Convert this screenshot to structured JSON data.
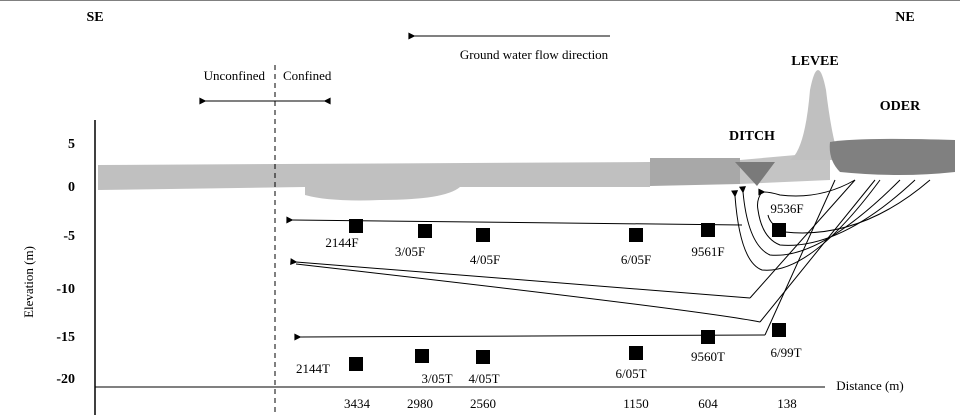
{
  "header": {
    "left": "SE",
    "right": "NE",
    "flow_label": "Ground water flow direction"
  },
  "zones": {
    "unconfined": "Unconfined",
    "confined": "Confined"
  },
  "features": {
    "levee": "LEVEE",
    "ditch": "DITCH",
    "oder": "ODER"
  },
  "y_axis": {
    "label": "Elevation (m)",
    "ticks": [
      "5",
      "0",
      "-5",
      "-10",
      "-15",
      "-20"
    ]
  },
  "x_axis": {
    "label": "Distance (m)",
    "ticks": [
      "3434",
      "2980",
      "2560",
      "1150",
      "604",
      "138"
    ]
  },
  "wells": [
    {
      "label": "2144F"
    },
    {
      "label": "3/05F"
    },
    {
      "label": "4/05F"
    },
    {
      "label": "6/05F"
    },
    {
      "label": "9561F"
    },
    {
      "label": "9536F"
    },
    {
      "label": "2144T"
    },
    {
      "label": "3/05T"
    },
    {
      "label": "4/05T"
    },
    {
      "label": "6/05T"
    },
    {
      "label": "9560T"
    },
    {
      "label": "6/99T"
    }
  ]
}
